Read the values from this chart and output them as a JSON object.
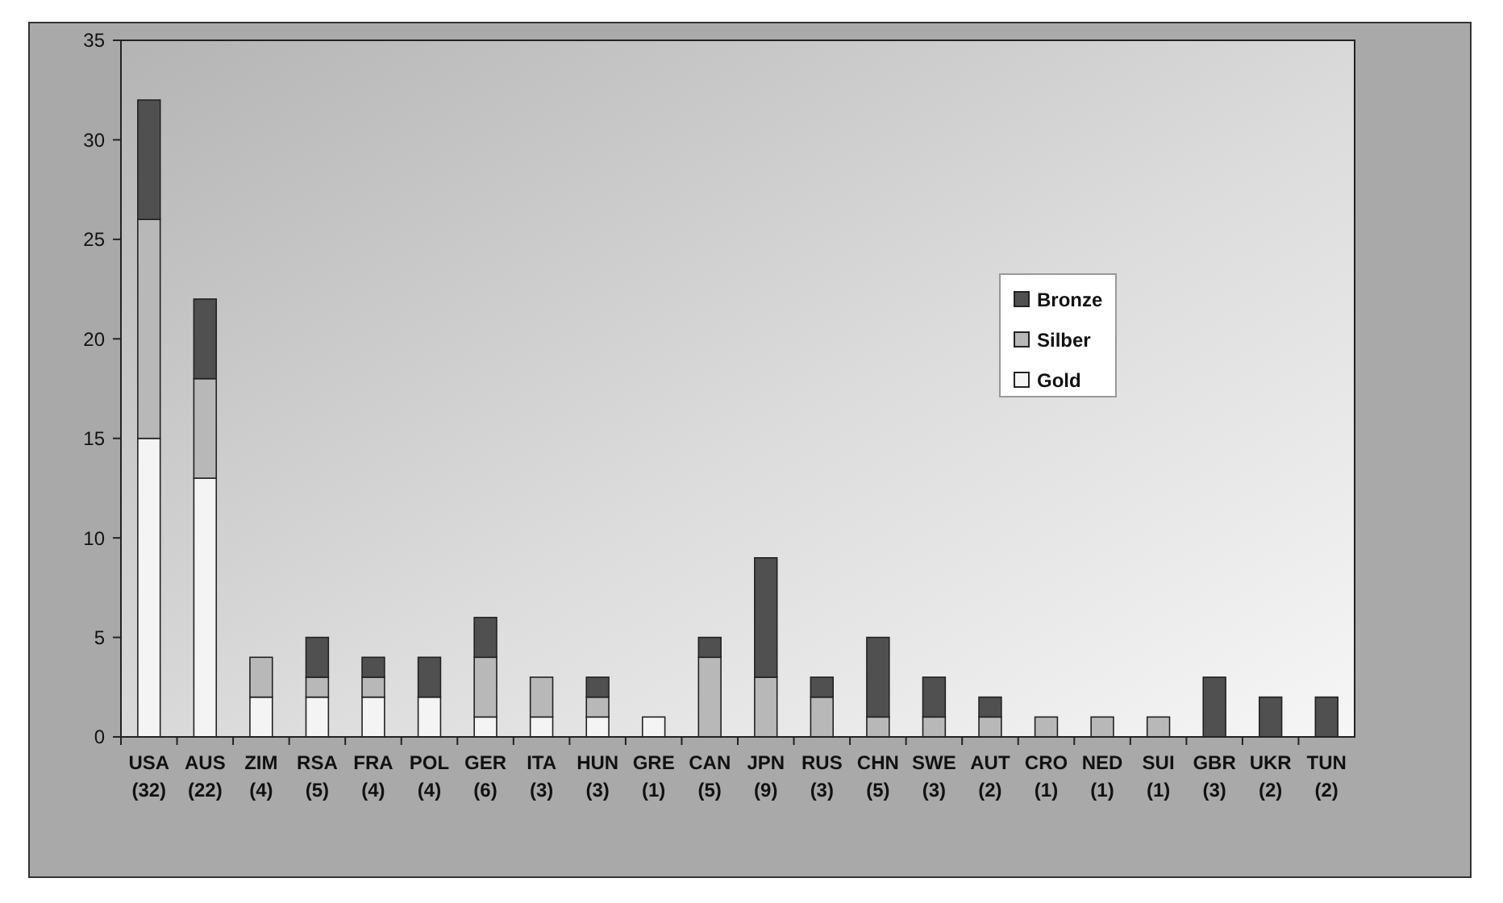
{
  "chart_data": {
    "type": "bar",
    "stacked": true,
    "categories": [
      "USA (32)",
      "AUS (22)",
      "ZIM (4)",
      "RSA (5)",
      "FRA (4)",
      "POL (4)",
      "GER (6)",
      "ITA (3)",
      "HUN (3)",
      "GRE (1)",
      "CAN (5)",
      "JPN (9)",
      "RUS (3)",
      "CHN (5)",
      "SWE (3)",
      "AUT (2)",
      "CRO (1)",
      "NED (1)",
      "SUI (1)",
      "GBR (3)",
      "UKR (2)",
      "TUN (2)"
    ],
    "series": [
      {
        "name": "Gold",
        "color": "#f4f4f4",
        "values": [
          15,
          13,
          2,
          2,
          2,
          2,
          1,
          1,
          1,
          1,
          0,
          0,
          0,
          0,
          0,
          0,
          0,
          0,
          0,
          0,
          0,
          0
        ]
      },
      {
        "name": "Silber",
        "color": "#b8b8b8",
        "values": [
          11,
          5,
          2,
          1,
          1,
          0,
          3,
          2,
          1,
          0,
          4,
          3,
          2,
          1,
          1,
          1,
          1,
          1,
          1,
          0,
          0,
          0
        ]
      },
      {
        "name": "Bronze",
        "color": "#505050",
        "values": [
          6,
          4,
          0,
          2,
          1,
          2,
          2,
          0,
          1,
          0,
          1,
          6,
          1,
          4,
          2,
          1,
          0,
          0,
          0,
          3,
          2,
          2
        ]
      }
    ],
    "ylim": [
      0,
      35
    ],
    "yticks": [
      0,
      5,
      10,
      15,
      20,
      25,
      30,
      35
    ],
    "grid": false,
    "legend": "right"
  }
}
